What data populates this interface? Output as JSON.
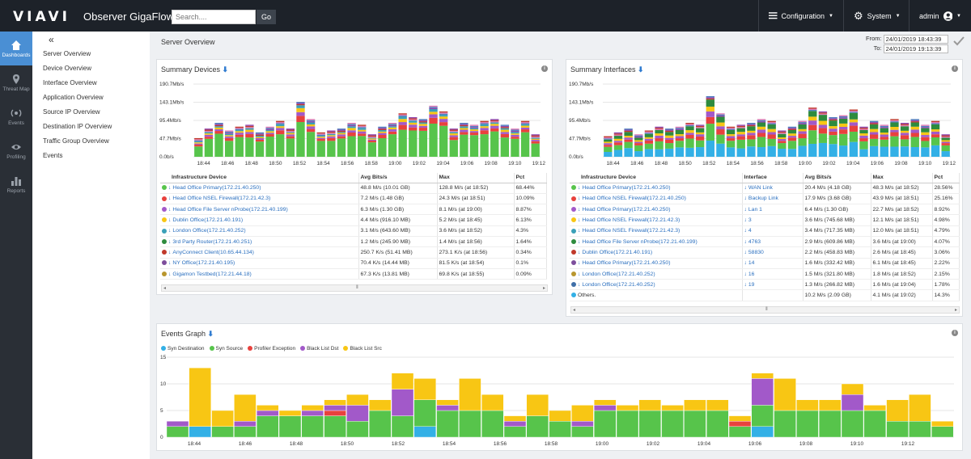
{
  "topbar": {
    "logo": "VIAVI",
    "app_title": "Observer GigaFlow",
    "search_placeholder": "Search....",
    "go_label": "Go",
    "configuration": "Configuration",
    "system": "System",
    "user": "admin"
  },
  "leftnav": {
    "items": [
      {
        "label": "Dashboards",
        "icon": "home-icon",
        "active": true
      },
      {
        "label": "Threat Map",
        "icon": "map-pin-icon"
      },
      {
        "label": "Events",
        "icon": "events-icon"
      },
      {
        "label": "Profiling",
        "icon": "eye-icon"
      },
      {
        "label": "Reports",
        "icon": "bar-chart-icon"
      }
    ]
  },
  "sidemenu": {
    "collapse": "«",
    "items": [
      "Server Overview",
      "Device Overview",
      "Interface Overview",
      "Application Overview",
      "Source IP Overview",
      "Destination IP Overview",
      "Traffic Group Overview",
      "Events"
    ]
  },
  "breadcrumb": "Server Overview",
  "daterange": {
    "from_label": "From:",
    "from": "24/01/2019 18:43:39",
    "to_label": "To:",
    "to": "24/01/2019 19:13:39"
  },
  "colors": {
    "green": "#57c44b",
    "red": "#e8413d",
    "purple": "#a259c9",
    "yellow": "#f8c614",
    "blue": "#33b0e6",
    "orange": "#f39c33"
  },
  "summary_devices": {
    "title": "Summary Devices",
    "headers": [
      "Infrastructure Device",
      "Avg Bits/s",
      "Max",
      "Pct"
    ],
    "rows": [
      {
        "color": "#57c44b",
        "device": "Head Office Primary(172.21.40.250)",
        "avg": "48.8 M/s (10.01 GB)",
        "max": "128.8 M/s (at 18:52)",
        "pct": "68.44%"
      },
      {
        "color": "#e8413d",
        "device": "Head Office NSEL Firewall(172.21.42.3)",
        "avg": "7.2 M/s (1.48 GB)",
        "max": "24.3 M/s (at 18:51)",
        "pct": "10.09%"
      },
      {
        "color": "#a259c9",
        "device": "Head Office File Server nProbe(172.21.40.199)",
        "avg": "6.3 M/s (1.30 GB)",
        "max": "8.1 M/s (at 19:00)",
        "pct": "8.87%"
      },
      {
        "color": "#f8c614",
        "device": "Dublin Office(172.21.40.191)",
        "avg": "4.4 M/s (916.10 MB)",
        "max": "5.2 M/s (at 18:45)",
        "pct": "6.13%"
      },
      {
        "color": "#3aa0b8",
        "device": "London Office(172.21.40.252)",
        "avg": "3.1 M/s (643.60 MB)",
        "max": "3.6 M/s (at 18:52)",
        "pct": "4.3%"
      },
      {
        "color": "#2e8b3e",
        "device": "3rd Party Router(172.21.40.251)",
        "avg": "1.2 M/s (245.90 MB)",
        "max": "1.4 M/s (at 18:56)",
        "pct": "1.64%"
      },
      {
        "color": "#c0392b",
        "device": "AnyConnect Client(10.65.44.134)",
        "avg": "250.7 K/s (51.41 MB)",
        "max": "273.1 K/s (at 18:56)",
        "pct": "0.34%"
      },
      {
        "color": "#7d4e9c",
        "device": "NY Office(172.21.40.195)",
        "avg": "70.4 K/s (14.44 MB)",
        "max": "81.5 K/s (at 18:54)",
        "pct": "0.1%"
      },
      {
        "color": "#b8962e",
        "device": "Gigamon Testbed(172.21.44.18)",
        "avg": "67.3 K/s (13.81 MB)",
        "max": "69.8 K/s (at 18:55)",
        "pct": "0.09%"
      }
    ]
  },
  "summary_interfaces": {
    "title": "Summary Interfaces",
    "headers": [
      "Infrastructure Device",
      "Interface",
      "Avg Bits/s",
      "Max",
      "Pct"
    ],
    "rows": [
      {
        "color": "#57c44b",
        "device": "Head Office Primary(172.21.40.250)",
        "iface": "WAN Link",
        "avg": "20.4 M/s (4.18 GB)",
        "max": "48.3 M/s (at 18:52)",
        "pct": "28.56%"
      },
      {
        "color": "#e8413d",
        "device": "Head Office NSEL Firewall(172.21.40.250)",
        "iface": "Backup Link",
        "avg": "17.9 M/s (3.68 GB)",
        "max": "43.9 M/s (at 18:51)",
        "pct": "25.16%"
      },
      {
        "color": "#a259c9",
        "device": "Head Office Primary(172.21.40.250)",
        "iface": "Lan 1",
        "avg": "6.4 M/s (1.30 GB)",
        "max": "22.7 M/s (at 18:52)",
        "pct": "8.92%"
      },
      {
        "color": "#f8c614",
        "device": "Head Office NSEL Firewall(172.21.42.3)",
        "iface": "3",
        "avg": "3.6 M/s (745.68 MB)",
        "max": "12.1 M/s (at 18:51)",
        "pct": "4.98%"
      },
      {
        "color": "#3aa0b8",
        "device": "Head Office NSEL Firewall(172.21.42.3)",
        "iface": "4",
        "avg": "3.4 M/s (717.35 MB)",
        "max": "12.0 M/s (at 18:51)",
        "pct": "4.79%"
      },
      {
        "color": "#2e8b3e",
        "device": "Head Office File Server nProbe(172.21.40.199)",
        "iface": "4763",
        "avg": "2.9 M/s (609.86 MB)",
        "max": "3.6 M/s (at 19:00)",
        "pct": "4.07%"
      },
      {
        "color": "#c0392b",
        "device": "Dublin Office(172.21.40.191)",
        "iface": "58830",
        "avg": "2.2 M/s (458.83 MB)",
        "max": "2.6 M/s (at 18:45)",
        "pct": "3.06%"
      },
      {
        "color": "#7d4e9c",
        "device": "Head Office Primary(172.21.40.250)",
        "iface": "14",
        "avg": "1.6 M/s (332.42 MB)",
        "max": "6.1 M/s (at 18:45)",
        "pct": "2.22%"
      },
      {
        "color": "#b8962e",
        "device": "London Office(172.21.40.252)",
        "iface": "16",
        "avg": "1.5 M/s (321.80 MB)",
        "max": "1.8 M/s (at 18:52)",
        "pct": "2.15%"
      },
      {
        "color": "#3f6fa8",
        "device": "London Office(172.21.40.252)",
        "iface": "19",
        "avg": "1.3 M/s (266.82 MB)",
        "max": "1.6 M/s (at 19:04)",
        "pct": "1.78%"
      },
      {
        "color": "#33b0e6",
        "device": "Others.",
        "iface": "",
        "avg": "10.2 M/s (2.09 GB)",
        "max": "4.1 M/s (at 19:02)",
        "pct": "14.3%"
      }
    ]
  },
  "events_graph": {
    "title": "Events Graph",
    "legend": [
      {
        "name": "Syn Destination",
        "color": "#33b0e6"
      },
      {
        "name": "Syn Source",
        "color": "#57c44b"
      },
      {
        "name": "Profiler Exception",
        "color": "#e8413d"
      },
      {
        "name": "Black List Dst",
        "color": "#a259c9"
      },
      {
        "name": "Black List Src",
        "color": "#f8c614"
      }
    ]
  },
  "chart_data": [
    {
      "type": "bar",
      "title": "Summary Devices",
      "stacked": true,
      "yticks": [
        "190.7Mb/s",
        "143.1Mb/s",
        "95.4Mb/s",
        "47.7Mb/s",
        "0.0b/s"
      ],
      "ylim": [
        0,
        190.7
      ],
      "xticks": [
        "18:44",
        "18:46",
        "18:48",
        "18:50",
        "18:52",
        "18:54",
        "18:56",
        "18:58",
        "19:00",
        "19:02",
        "19:04",
        "19:06",
        "19:08",
        "19:10",
        "19:12"
      ],
      "totals": [
        40,
        65,
        80,
        60,
        70,
        75,
        55,
        70,
        85,
        65,
        135,
        90,
        55,
        60,
        65,
        80,
        75,
        50,
        70,
        80,
        105,
        95,
        90,
        125,
        110,
        65,
        80,
        75,
        85,
        90,
        75,
        65,
        85,
        50
      ],
      "series_share": [
        {
          "name": "Head Office Primary(172.21.40.250)",
          "share": 0.72
        },
        {
          "name": "Head Office NSEL Firewall(172.21.42.3)",
          "share": 0.1
        },
        {
          "name": "Head Office File Server nProbe(172.21.40.199)",
          "share": 0.07
        },
        {
          "name": "Dublin Office(172.21.40.191)",
          "share": 0.06
        },
        {
          "name": "London Office(172.21.40.252)",
          "share": 0.05
        }
      ]
    },
    {
      "type": "bar",
      "title": "Summary Interfaces",
      "stacked": true,
      "yticks": [
        "190.7Mb/s",
        "143.1Mb/s",
        "95.4Mb/s",
        "47.7Mb/s",
        "0.0b/s"
      ],
      "ylim": [
        0,
        190.7
      ],
      "xticks": [
        "18:44",
        "18:46",
        "18:48",
        "18:50",
        "18:52",
        "18:54",
        "18:56",
        "18:58",
        "19:00",
        "19:02",
        "19:04",
        "19:06",
        "19:08",
        "19:10",
        "19:12"
      ],
      "totals": [
        45,
        55,
        65,
        50,
        60,
        70,
        65,
        70,
        80,
        75,
        150,
        105,
        70,
        75,
        80,
        90,
        85,
        60,
        70,
        85,
        120,
        110,
        95,
        100,
        115,
        70,
        85,
        75,
        90,
        80,
        90,
        75,
        85,
        50
      ],
      "series_share": [
        {
          "name": "WAN Link",
          "share": 0.32
        },
        {
          "name": "Backup Link",
          "share": 0.26
        },
        {
          "name": "Lan 1",
          "share": 0.12
        },
        {
          "name": "3",
          "share": 0.08
        },
        {
          "name": "4",
          "share": 0.08
        },
        {
          "name": "Others.",
          "share": 0.14
        }
      ]
    },
    {
      "type": "bar",
      "title": "Events Graph",
      "stacked": true,
      "yticks": [
        "15",
        "10",
        "5",
        "0"
      ],
      "ylim": [
        0,
        15
      ],
      "xticks": [
        "18:44",
        "18:46",
        "18:48",
        "18:50",
        "18:52",
        "18:54",
        "18:56",
        "18:58",
        "19:00",
        "19:02",
        "19:04",
        "19:06",
        "19:08",
        "19:10",
        "19:12"
      ],
      "series": [
        {
          "name": "Syn Destination",
          "values": [
            0,
            2,
            0,
            0,
            0,
            0,
            0,
            0,
            0,
            0,
            0,
            2,
            0,
            0,
            0,
            0,
            0,
            0,
            0,
            0,
            0,
            0,
            0,
            0,
            0,
            0,
            2,
            0,
            0,
            0,
            0,
            0,
            0,
            0,
            0
          ]
        },
        {
          "name": "Syn Source",
          "values": [
            2,
            0,
            2,
            2,
            4,
            4,
            4,
            4,
            3,
            5,
            4,
            5,
            5,
            5,
            5,
            2,
            4,
            3,
            2,
            5,
            5,
            5,
            5,
            5,
            5,
            2,
            4,
            5,
            5,
            5,
            5,
            5,
            3,
            3,
            2
          ]
        },
        {
          "name": "Profiler Exception",
          "values": [
            0,
            0,
            0,
            0,
            0,
            0,
            0,
            1,
            0,
            0,
            0,
            0,
            0,
            0,
            0,
            0,
            0,
            0,
            0,
            0,
            0,
            0,
            0,
            0,
            0,
            1,
            0,
            0,
            0,
            0,
            0,
            0,
            0,
            0,
            0
          ]
        },
        {
          "name": "Black List Dst",
          "values": [
            1,
            0,
            0,
            1,
            1,
            0,
            1,
            1,
            3,
            0,
            5,
            0,
            1,
            0,
            0,
            1,
            0,
            0,
            1,
            1,
            0,
            0,
            0,
            0,
            0,
            0,
            5,
            0,
            0,
            0,
            3,
            0,
            0,
            0,
            0
          ]
        },
        {
          "name": "Black List Src",
          "values": [
            0,
            11,
            3,
            5,
            1,
            1,
            1,
            1,
            2,
            2,
            3,
            4,
            1,
            6,
            3,
            1,
            4,
            2,
            3,
            1,
            1,
            2,
            1,
            2,
            2,
            1,
            1,
            6,
            2,
            2,
            2,
            1,
            4,
            5,
            1
          ]
        }
      ]
    }
  ]
}
